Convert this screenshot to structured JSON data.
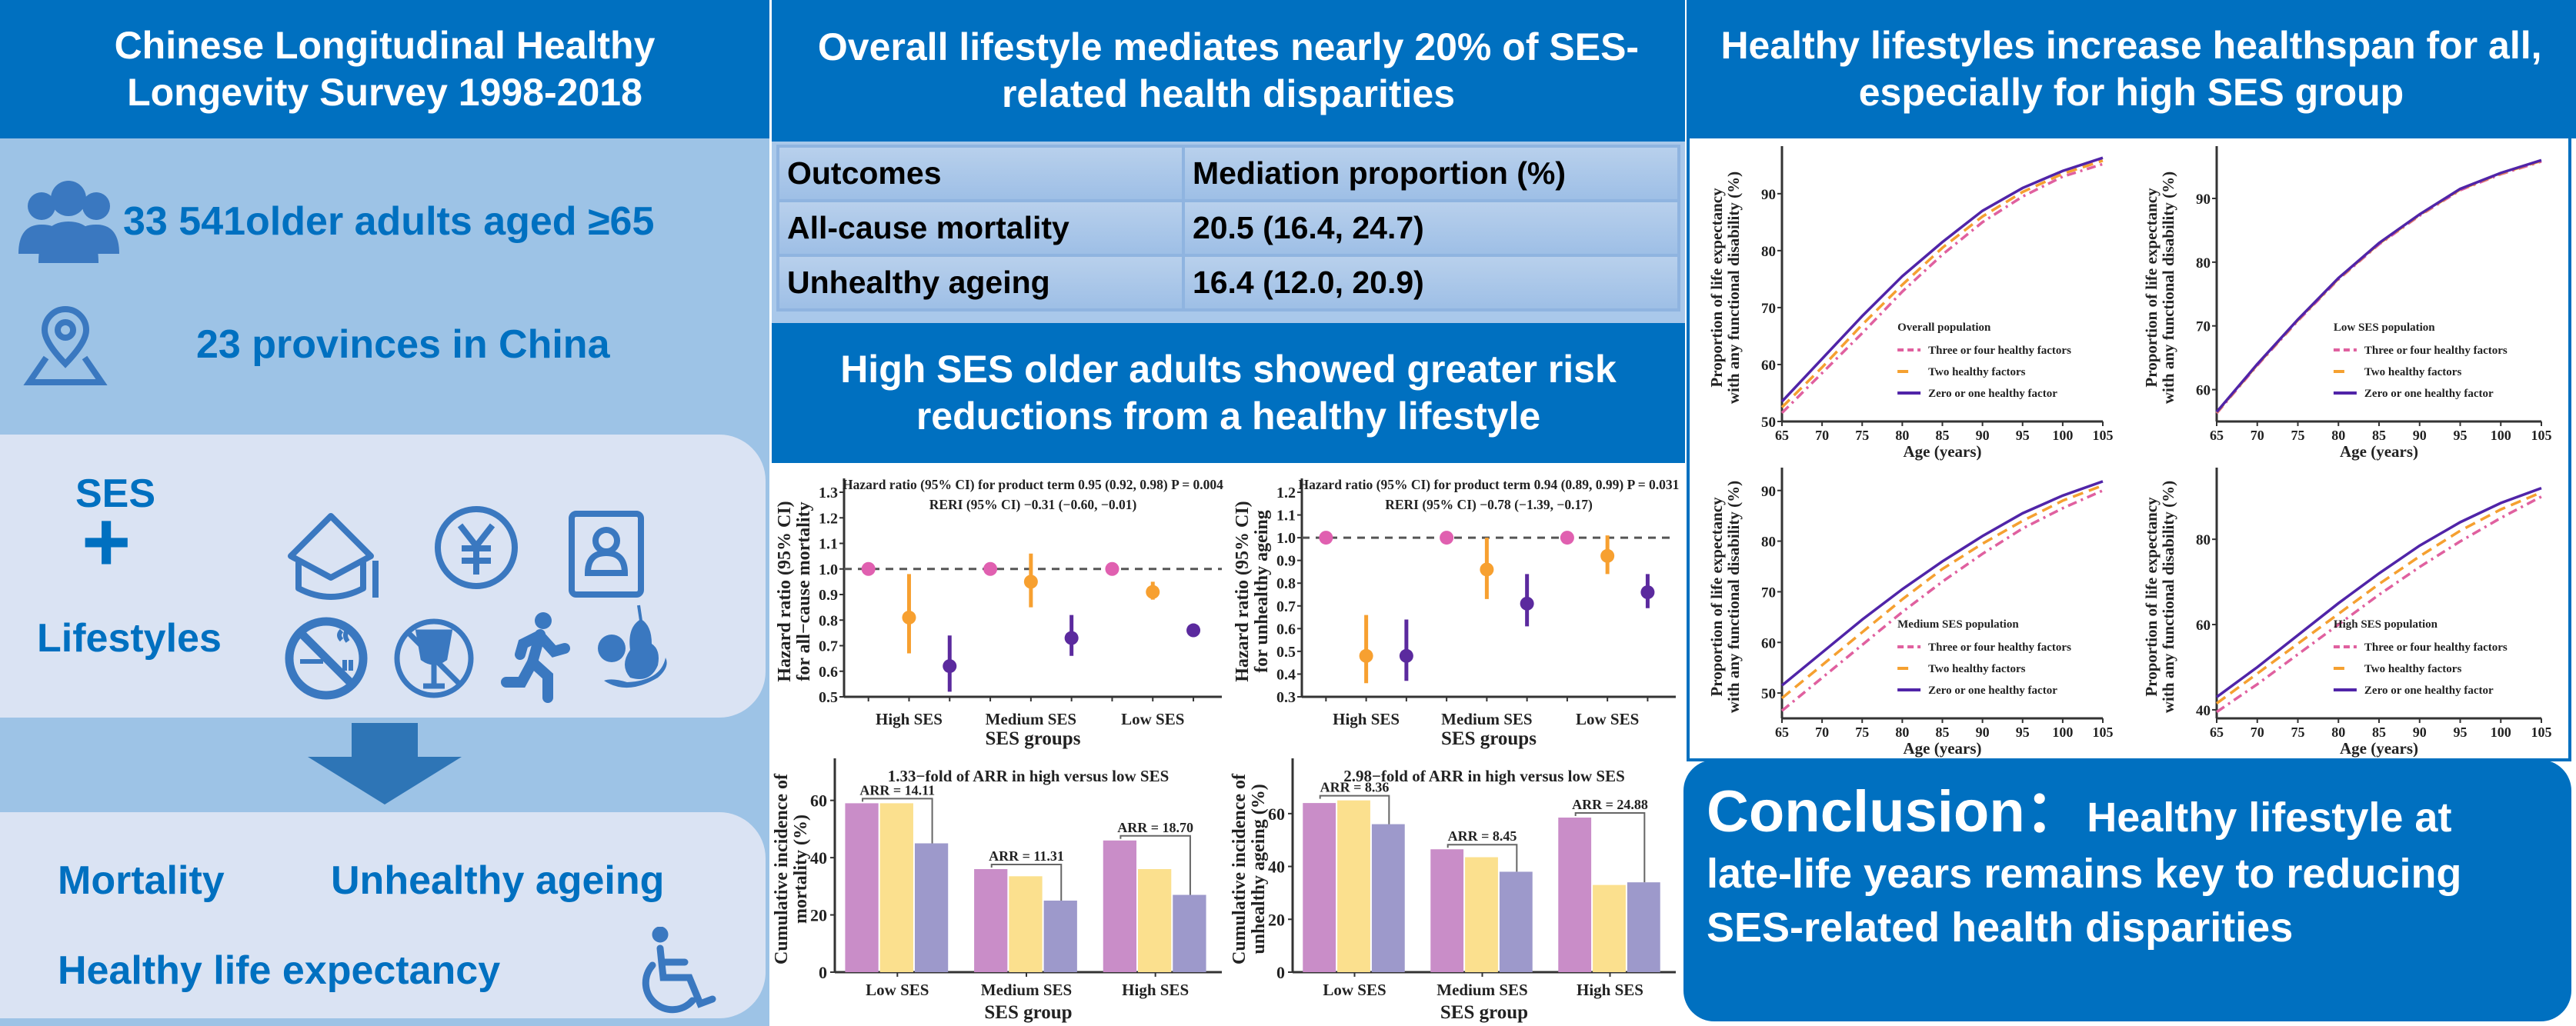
{
  "left": {
    "header": "Chinese Longitudinal Healthy Longevity Survey 1998-2018",
    "participants": "33 541older adults aged ≥65",
    "provinces": "23 provinces in China",
    "ses_label": "SES",
    "plus": "+",
    "lifestyles_label": "Lifestyles",
    "outcome_mortality": "Mortality",
    "outcome_unhealthy": "Unhealthy ageing",
    "outcome_hle": "Healthy life expectancy",
    "icons": [
      "people-group-icon",
      "location-pin-icon",
      "graduation-cap-icon",
      "yen-coin-icon",
      "id-card-icon",
      "no-smoking-icon",
      "no-alcohol-icon",
      "running-person-icon",
      "fruit-icon",
      "down-arrow-icon",
      "wheelchair-icon"
    ]
  },
  "middle": {
    "header": "Overall lifestyle mediates nearly 20% of SES-related health disparities",
    "table": {
      "columns": [
        "Outcomes",
        "Mediation proportion (%)"
      ],
      "rows": [
        [
          "All-cause mortality",
          "20.5 (16.4, 24.7)"
        ],
        [
          "Unhealthy ageing",
          "16.4 (12.0, 20.9)"
        ]
      ]
    },
    "header2": "High SES older adults showed greater risk reductions from a healthy lifestyle"
  },
  "right": {
    "header": "Healthy lifestyles increase healthspan for all, especially for high SES group",
    "conclusion_label": "Conclusion：",
    "conclusion_text_1": "Healthy lifestyle at",
    "conclusion_text_2": "late-life years remains key to reducing SES-related health disparities"
  },
  "colors": {
    "brand_blue": "#0070C0",
    "panel_light": "#9DC3E6",
    "box_light": "#DAE3F3"
  },
  "chart_data": [
    {
      "type": "scatter",
      "errorbars": true,
      "ylabel_lines": [
        "Hazard ratio (95% CI)",
        "for all−cause mortality"
      ],
      "xlabel": "SES groups",
      "categories": [
        "High SES",
        "Medium SES",
        "Low SES"
      ],
      "ylim": [
        0.5,
        1.3
      ],
      "yticks": [
        0.5,
        0.6,
        0.7,
        0.8,
        0.9,
        1.0,
        1.1,
        1.2,
        1.3
      ],
      "reference_line": 1.0,
      "annotations": [
        "Hazard ratio (95% CI) for product term 0.95 (0.92, 0.98) P = 0.004",
        "RERI  (95% CI) −0.31 (−0.60, −0.01)"
      ],
      "series": [
        {
          "color": "#E060B0",
          "values": [
            1.0,
            1.0,
            1.0
          ],
          "ci": [
            [
              1.0,
              1.0
            ],
            [
              1.0,
              1.0
            ],
            [
              1.0,
              1.0
            ]
          ]
        },
        {
          "color": "#F7A030",
          "values": [
            0.81,
            0.95,
            0.91
          ],
          "ci": [
            [
              0.67,
              0.98
            ],
            [
              0.85,
              1.06
            ],
            [
              0.88,
              0.95
            ]
          ]
        },
        {
          "color": "#5B2A9E",
          "values": [
            0.62,
            0.73,
            0.76
          ],
          "ci": [
            [
              0.52,
              0.74
            ],
            [
              0.66,
              0.82
            ],
            [
              0.74,
              0.78
            ]
          ]
        }
      ]
    },
    {
      "type": "scatter",
      "errorbars": true,
      "ylabel_lines": [
        "Hazard ratio (95% CI)",
        "for unhealthy ageing"
      ],
      "xlabel": "SES groups",
      "categories": [
        "High SES",
        "Medium SES",
        "Low SES"
      ],
      "ylim": [
        0.3,
        1.2
      ],
      "yticks": [
        0.3,
        0.4,
        0.5,
        0.6,
        0.7,
        0.8,
        0.9,
        1.0,
        1.1,
        1.2
      ],
      "reference_line": 1.0,
      "annotations": [
        "Hazard ratio (95% CI) for product term 0.94 (0.89, 0.99) P = 0.031",
        "RERI  (95% CI) −0.78 (−1.39, −0.17)"
      ],
      "series": [
        {
          "color": "#E060B0",
          "values": [
            1.0,
            1.0,
            1.0
          ],
          "ci": [
            [
              1.0,
              1.0
            ],
            [
              1.0,
              1.0
            ],
            [
              1.0,
              1.0
            ]
          ]
        },
        {
          "color": "#F7A030",
          "values": [
            0.48,
            0.86,
            0.92
          ],
          "ci": [
            [
              0.36,
              0.66
            ],
            [
              0.73,
              1.0
            ],
            [
              0.84,
              1.01
            ]
          ]
        },
        {
          "color": "#5B2A9E",
          "values": [
            0.48,
            0.71,
            0.76
          ],
          "ci": [
            [
              0.37,
              0.64
            ],
            [
              0.61,
              0.84
            ],
            [
              0.69,
              0.84
            ]
          ]
        }
      ]
    },
    {
      "type": "bar",
      "title": "1.33−fold of ARR in high versus low SES",
      "ylabel_lines": [
        "Cumulative incidence of",
        "mortality (%)"
      ],
      "xlabel": "SES group",
      "categories": [
        "Low SES",
        "Medium SES",
        "High SES"
      ],
      "ylim": [
        0,
        72
      ],
      "yticks": [
        0,
        20,
        40,
        60
      ],
      "series": [
        {
          "color": "#C98DC8",
          "values": [
            59,
            36,
            46
          ]
        },
        {
          "color": "#FBE08E",
          "values": [
            59,
            33.5,
            36
          ]
        },
        {
          "color": "#9D99CB",
          "values": [
            45,
            25,
            27
          ]
        }
      ],
      "arr_labels": [
        "ARR = 14.11",
        "ARR = 11.31",
        "ARR = 18.70"
      ]
    },
    {
      "type": "bar",
      "title": "2.98−fold of ARR in high versus low SES",
      "ylabel_lines": [
        "Cumulative incidence of",
        "unhealthy ageing  (%)"
      ],
      "xlabel": "SES group",
      "categories": [
        "Low SES",
        "Medium SES",
        "High SES"
      ],
      "ylim": [
        0,
        78
      ],
      "yticks": [
        0,
        20,
        40,
        60
      ],
      "series": [
        {
          "color": "#C98DC8",
          "values": [
            64,
            46.5,
            58.5
          ]
        },
        {
          "color": "#FBE08E",
          "values": [
            65,
            43.5,
            33
          ]
        },
        {
          "color": "#9D99CB",
          "values": [
            56,
            38,
            34
          ]
        }
      ],
      "arr_labels": [
        "ARR = 8.36",
        "ARR = 8.45",
        "ARR = 24.88"
      ]
    },
    {
      "type": "line",
      "legend_title": "Overall population",
      "legend_position": "bottom-right",
      "xlabel": "Age (years)",
      "ylabel_lines": [
        "Proportion of life expectancy",
        "with any functional disability (%)"
      ],
      "x": [
        65,
        70,
        75,
        80,
        85,
        90,
        95,
        100,
        105
      ],
      "xticks": [
        65,
        70,
        75,
        80,
        85,
        90,
        95,
        100,
        105
      ],
      "ylim": [
        50,
        97
      ],
      "yticks": [
        50,
        60,
        70,
        80,
        90
      ],
      "series": [
        {
          "name": "Three or four healthy factors",
          "color": "#E0609F",
          "style": "dashdot",
          "values": [
            51.5,
            58.5,
            65.5,
            72.8,
            79.3,
            85,
            89.5,
            93,
            95.2
          ]
        },
        {
          "name": "Two healthy factors",
          "color": "#F5A030",
          "style": "dashed",
          "values": [
            52.5,
            59.5,
            67,
            74,
            80.5,
            86,
            90.3,
            93.5,
            95.8
          ]
        },
        {
          "name": "Zero or one healthy factor",
          "color": "#5024A8",
          "style": "solid",
          "values": [
            53.5,
            61,
            68.5,
            75.5,
            81.5,
            87,
            91,
            94,
            96.3
          ]
        }
      ]
    },
    {
      "type": "line",
      "legend_title": "Low SES population",
      "legend_position": "bottom-right",
      "xlabel": "Age (years)",
      "ylabel_lines": [
        "Proportion of life expectancy",
        "with any functional disability (%)"
      ],
      "x": [
        65,
        70,
        75,
        80,
        85,
        90,
        95,
        100,
        105
      ],
      "xticks": [
        65,
        70,
        75,
        80,
        85,
        90,
        95,
        100,
        105
      ],
      "ylim": [
        55,
        97
      ],
      "yticks": [
        60,
        70,
        80,
        90
      ],
      "series": [
        {
          "name": "Three or four healthy factors",
          "color": "#E0609F",
          "style": "dashdot",
          "values": [
            56.3,
            63.8,
            70.8,
            77.3,
            82.8,
            87.3,
            91.3,
            93.8,
            95.8
          ]
        },
        {
          "name": "Two healthy factors",
          "color": "#F5A030",
          "style": "dashed",
          "values": [
            56.4,
            63.9,
            70.9,
            77.4,
            82.9,
            87.4,
            91.4,
            93.9,
            95.9
          ]
        },
        {
          "name": "Zero or one healthy factor",
          "color": "#5024A8",
          "style": "solid",
          "values": [
            56.5,
            64,
            71,
            77.5,
            83,
            87.5,
            91.5,
            94,
            96
          ]
        }
      ]
    },
    {
      "type": "line",
      "legend_title": "Medium SES population",
      "legend_position": "bottom-right",
      "xlabel": "Age (years)",
      "ylabel_lines": [
        "Proportion of life expectancy",
        "with any functional disability (%)"
      ],
      "x": [
        65,
        70,
        75,
        80,
        85,
        90,
        95,
        100,
        105
      ],
      "xticks": [
        65,
        70,
        75,
        80,
        85,
        90,
        95,
        100,
        105
      ],
      "ylim": [
        45,
        93
      ],
      "yticks": [
        50,
        60,
        70,
        80,
        90
      ],
      "series": [
        {
          "name": "Three or four healthy factors",
          "color": "#E0609F",
          "style": "dashdot",
          "values": [
            46.5,
            53,
            59.5,
            66,
            72,
            77.5,
            82.5,
            86.5,
            90
          ]
        },
        {
          "name": "Two healthy factors",
          "color": "#F5A030",
          "style": "dashed",
          "values": [
            49,
            55.5,
            62,
            68.5,
            74.5,
            79.5,
            84,
            88,
            91
          ]
        },
        {
          "name": "Zero or one healthy factor",
          "color": "#5024A8",
          "style": "solid",
          "values": [
            51.5,
            58,
            64.5,
            70.5,
            76,
            81,
            85.5,
            89,
            91.8
          ]
        }
      ]
    },
    {
      "type": "line",
      "legend_title": "High SES population",
      "legend_position": "bottom-right",
      "xlabel": "Age (years)",
      "ylabel_lines": [
        "Proportion of life expectancy",
        "with any functional disability (%)"
      ],
      "x": [
        65,
        70,
        75,
        80,
        85,
        90,
        95,
        100,
        105
      ],
      "xticks": [
        65,
        70,
        75,
        80,
        85,
        90,
        95,
        100,
        105
      ],
      "ylim": [
        38,
        95
      ],
      "yticks": [
        40,
        60,
        80
      ],
      "series": [
        {
          "name": "Three or four healthy factors",
          "color": "#E0609F",
          "style": "dashdot",
          "values": [
            39.5,
            46,
            53,
            60,
            67,
            73.5,
            79.5,
            85,
            90
          ]
        },
        {
          "name": "Two healthy factors",
          "color": "#F5A030",
          "style": "dashed",
          "values": [
            41.5,
            48.5,
            55.5,
            62.5,
            69.5,
            76,
            82,
            87,
            91
          ]
        },
        {
          "name": "Zero or one healthy factor",
          "color": "#5024A8",
          "style": "solid",
          "values": [
            43,
            50,
            57.5,
            65,
            72,
            78.5,
            84,
            88.5,
            92
          ]
        }
      ]
    }
  ]
}
